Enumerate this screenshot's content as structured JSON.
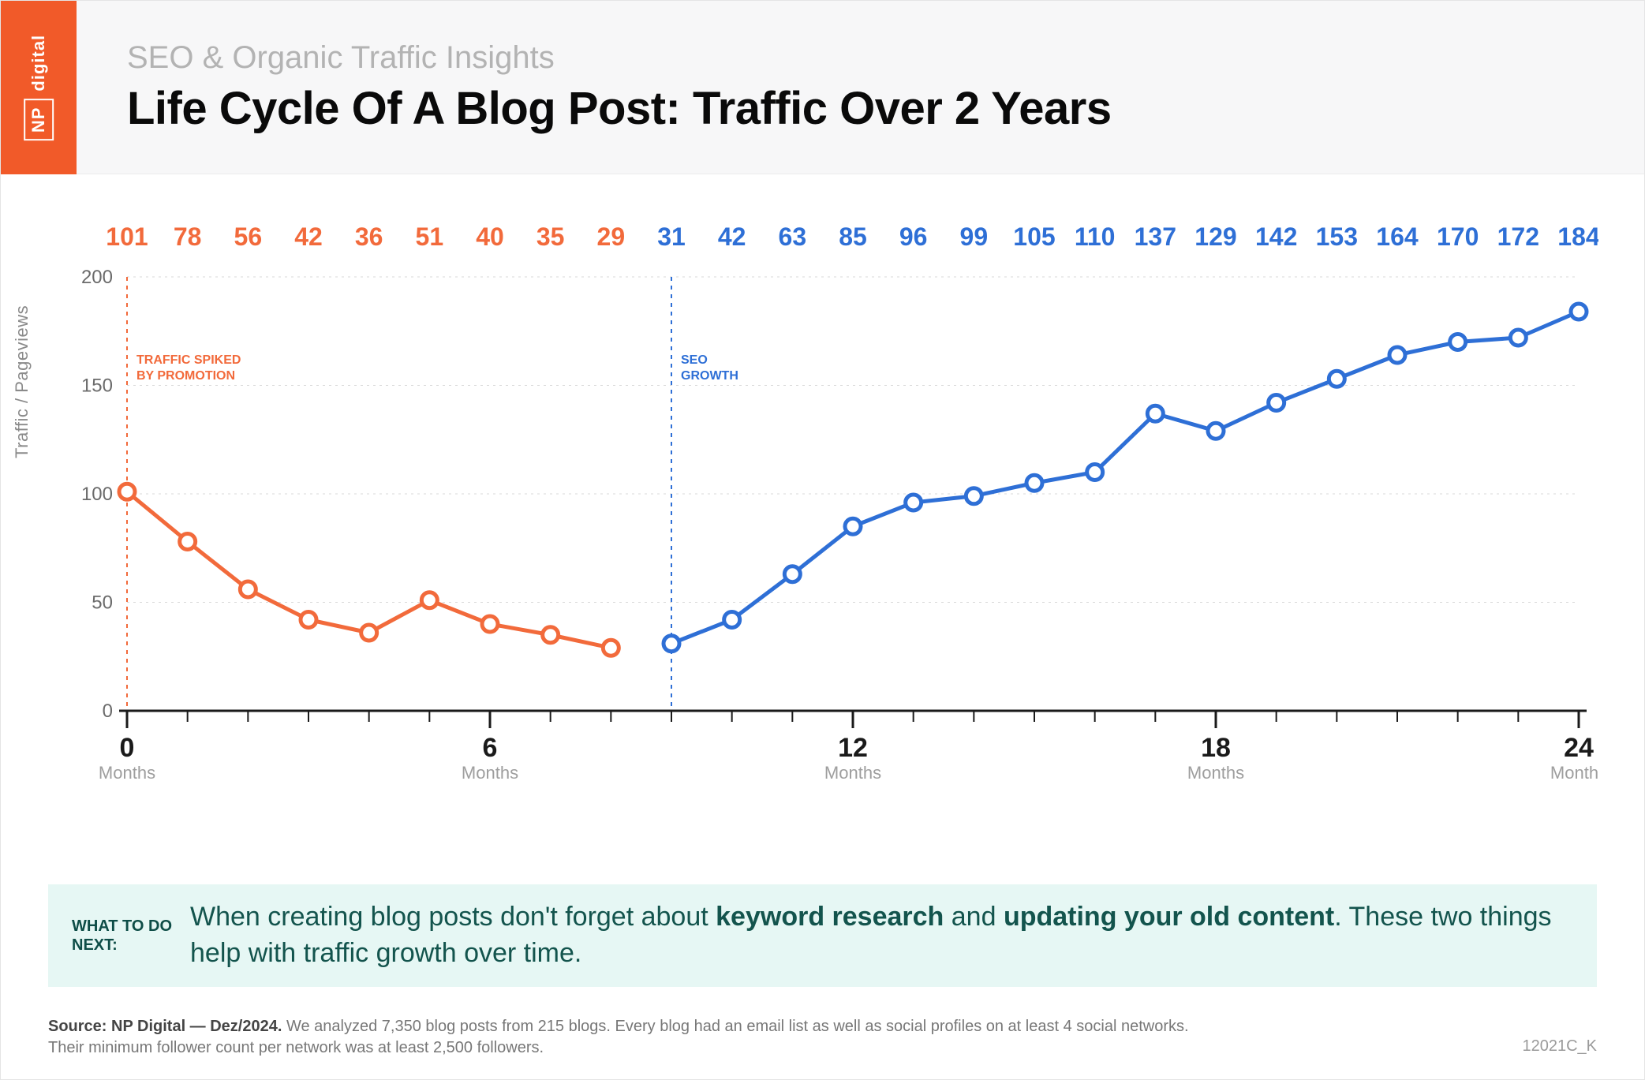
{
  "header": {
    "subtitle": "SEO & Organic Traffic Insights",
    "title": "Life Cycle Of A Blog Post: Traffic Over 2 Years",
    "logo_np": "NP",
    "logo_digital": "digital",
    "band_bg": "#f7f7f8",
    "logo_bg": "#f15a29"
  },
  "chart": {
    "type": "line",
    "y_axis_label": "Traffic / Pageviews",
    "x_label_word": "Months",
    "ylim": [
      0,
      200
    ],
    "yticks": [
      0,
      50,
      100,
      150,
      200
    ],
    "xlim": [
      0,
      24
    ],
    "xticks_minor_step": 1,
    "xticks_major": [
      0,
      6,
      12,
      18,
      24
    ],
    "grid_color": "#d9d9d9",
    "axis_color": "#1a1a1a",
    "background_color": "#ffffff",
    "tick_label_color": "#1a1a1a",
    "tick_label_fontsize": 34,
    "month_word_color": "#9e9e9e",
    "month_word_fontsize": 22,
    "line_width": 5,
    "marker_radius": 10,
    "marker_fill": "#ffffff",
    "marker_stroke_width": 5,
    "value_label_fontsize": 32,
    "orange": "#f26a3b",
    "blue": "#2e6fd6",
    "vertical_dash": "5,6",
    "series_promo": {
      "color": "#f26a3b",
      "x": [
        0,
        1,
        2,
        3,
        4,
        5,
        6,
        7,
        8
      ],
      "y": [
        101,
        78,
        56,
        42,
        36,
        51,
        40,
        35,
        29
      ]
    },
    "series_seo": {
      "color": "#2e6fd6",
      "x": [
        9,
        10,
        11,
        12,
        13,
        14,
        15,
        16,
        17,
        18,
        19,
        20,
        21,
        22,
        23,
        24
      ],
      "y": [
        31,
        42,
        63,
        85,
        96,
        99,
        105,
        110,
        137,
        129,
        142,
        153,
        164,
        170,
        172,
        184
      ]
    },
    "annotations": {
      "promo": {
        "x": 0,
        "text1": "TRAFFIC SPIKED",
        "text2": "BY PROMOTION",
        "color": "#f26a3b"
      },
      "seo": {
        "x": 9,
        "text1": "SEO",
        "text2": "GROWTH",
        "color": "#2e6fd6"
      }
    }
  },
  "callout": {
    "bg": "#e6f7f4",
    "label": "WHAT TO DO NEXT:",
    "body_pre": "When creating blog posts don't forget about ",
    "body_kw1": "keyword research",
    "body_mid": " and ",
    "body_kw2": "updating your old content",
    "body_post": ". These two things help with traffic growth over time.",
    "text_color": "#13544d"
  },
  "source": {
    "label": "Source:",
    "name": "NP Digital — Dez/2024.",
    "rest1": "We analyzed 7,350 blog posts from 215 blogs. Every blog had an email list as well as social profiles on at least 4 social networks.",
    "rest2": "Their minimum follower count per network was at least 2,500 followers."
  },
  "code_tag": "12021C_K"
}
